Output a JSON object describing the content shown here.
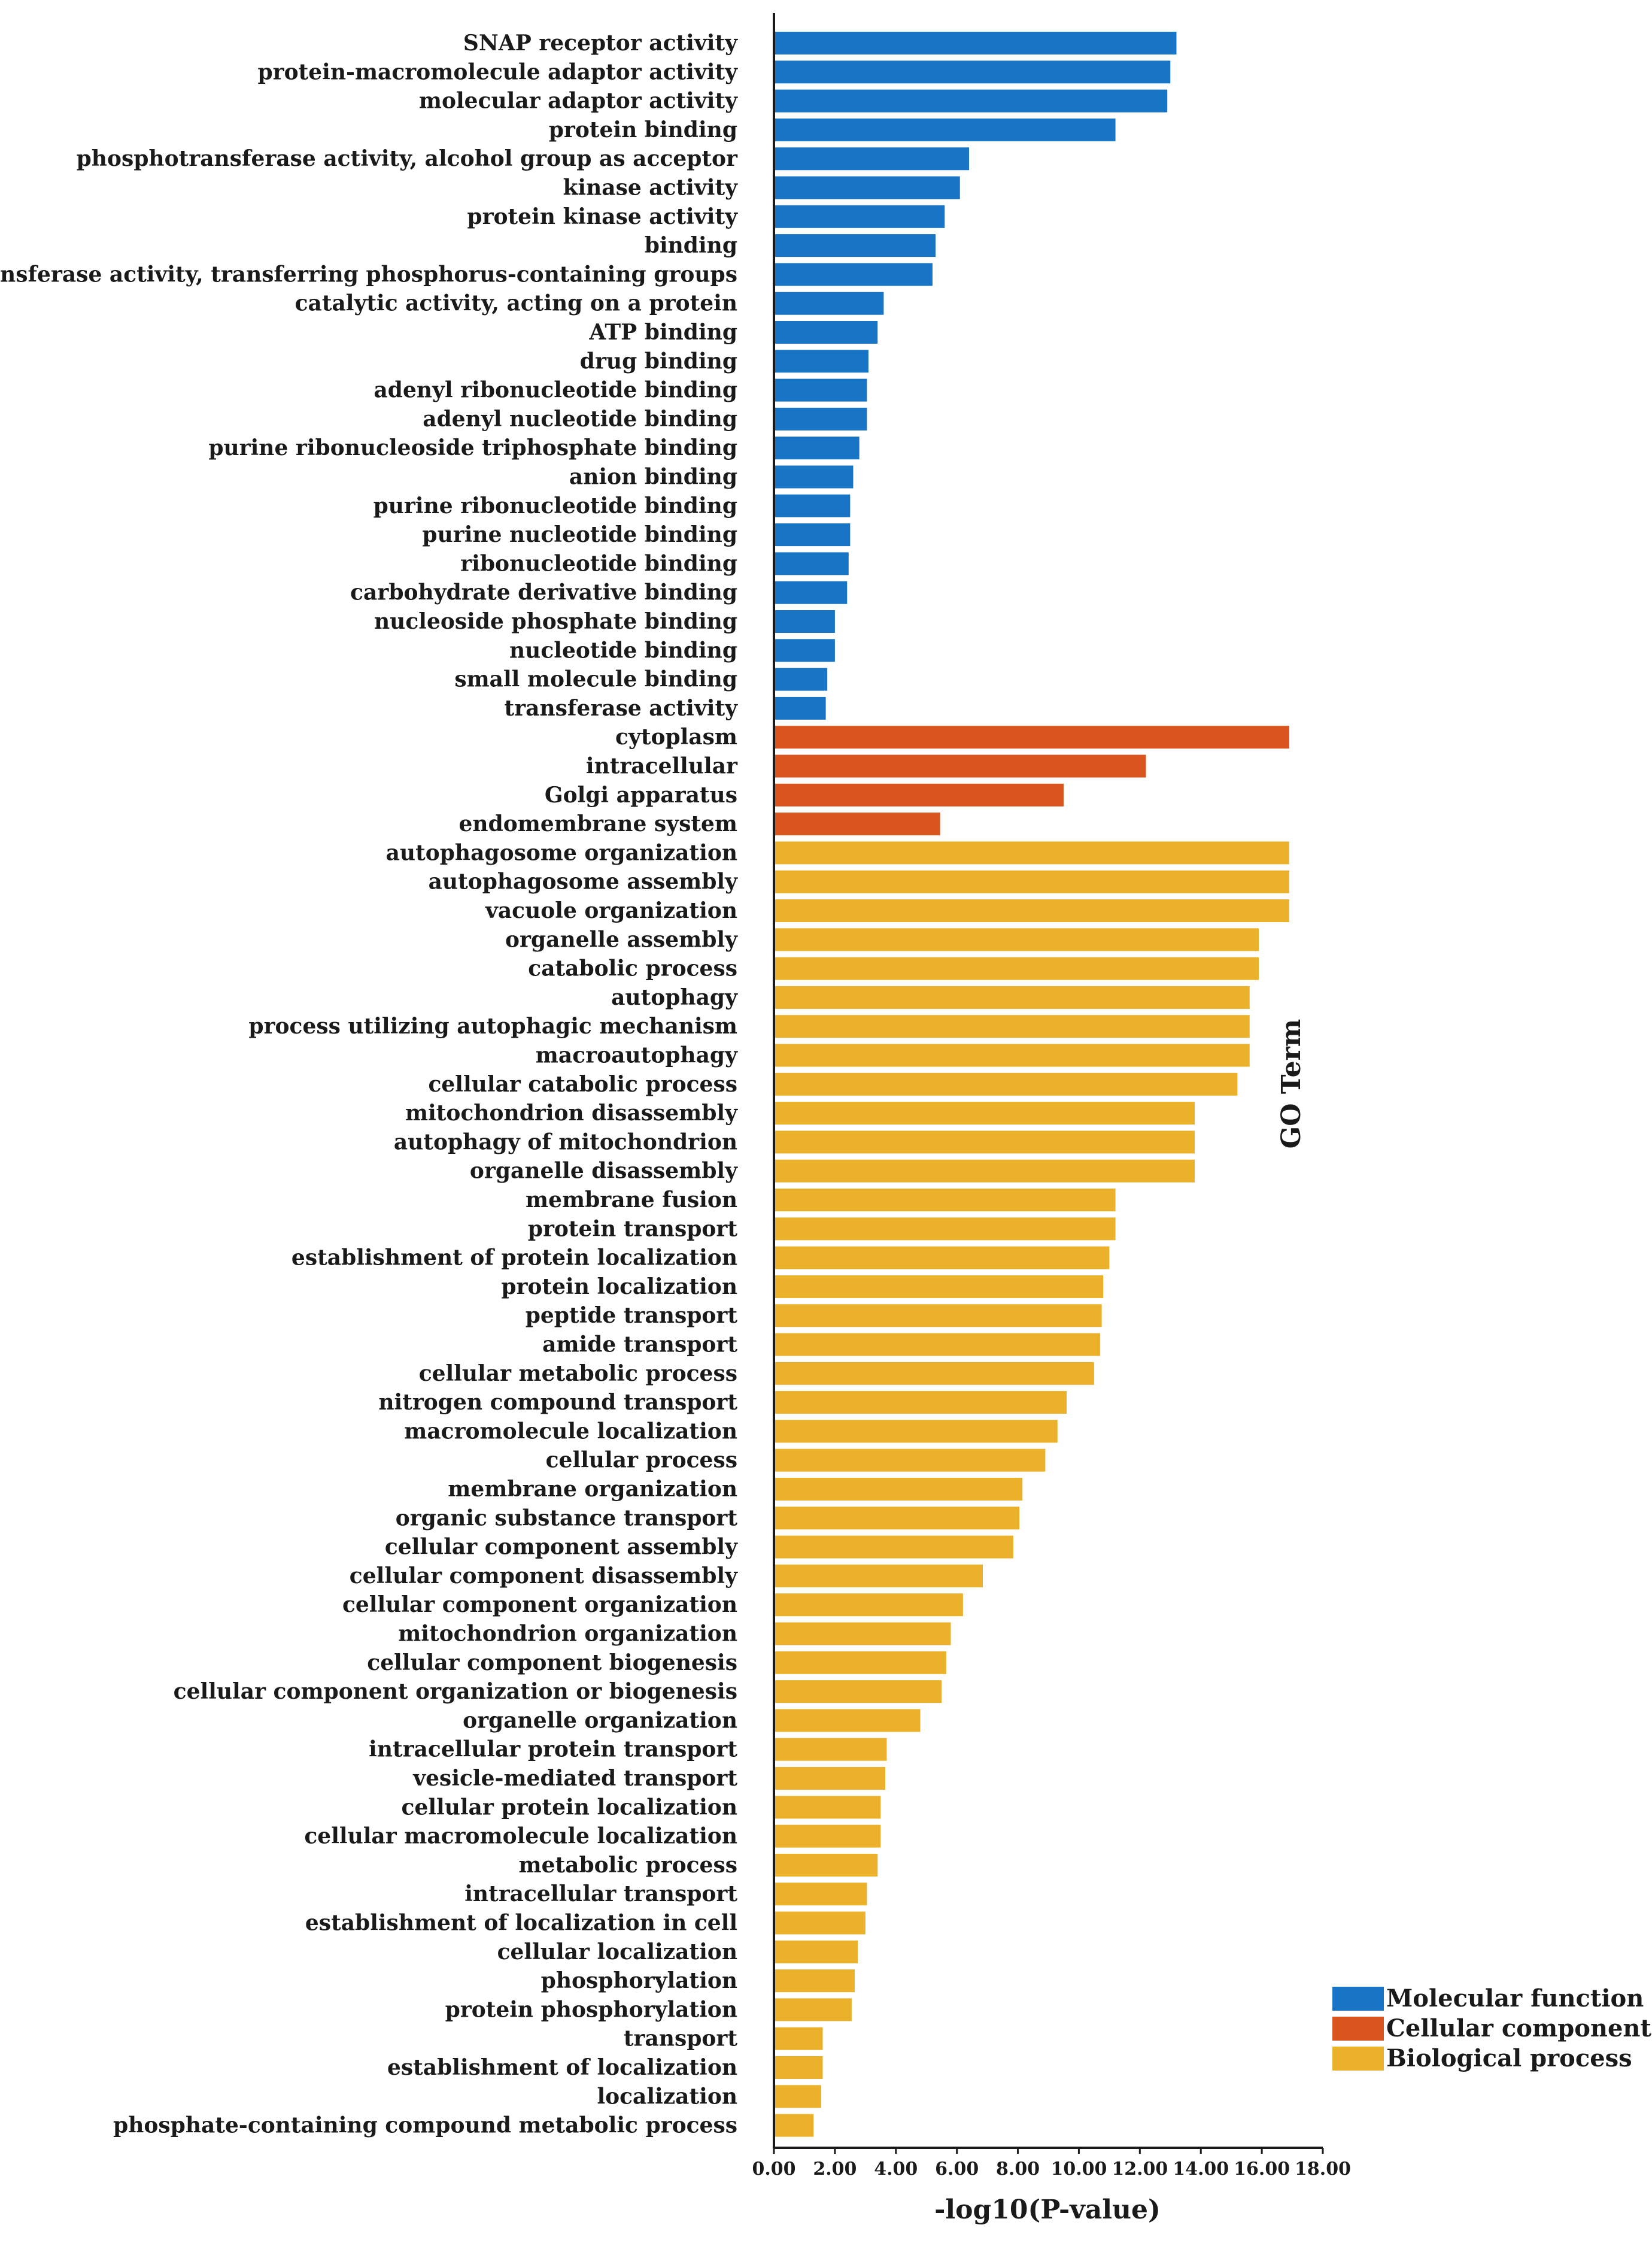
{
  "chart_data": {
    "type": "bar",
    "orientation": "horizontal",
    "xlabel": "-log10(P-value)",
    "ylabel": "GO Term",
    "xlim": [
      0,
      18
    ],
    "xticks": [
      "0.00",
      "2.00",
      "4.00",
      "6.00",
      "8.00",
      "10.00",
      "12.00",
      "14.00",
      "16.00",
      "18.00"
    ],
    "grid": false,
    "legend_position": "bottom-right",
    "series": [
      {
        "name": "Molecular function",
        "color": "#1874c4"
      },
      {
        "name": "Cellular component",
        "color": "#d9541e"
      },
      {
        "name": "Biological process",
        "color": "#ecb12a"
      }
    ],
    "bars": [
      {
        "term": "SNAP receptor activity",
        "value": 13.2,
        "category": "Molecular function"
      },
      {
        "term": "protein-macromolecule adaptor activity",
        "value": 13.0,
        "category": "Molecular function"
      },
      {
        "term": "molecular adaptor activity",
        "value": 12.9,
        "category": "Molecular function"
      },
      {
        "term": "protein binding",
        "value": 11.2,
        "category": "Molecular function"
      },
      {
        "term": "phosphotransferase activity, alcohol group as acceptor",
        "value": 6.4,
        "category": "Molecular function"
      },
      {
        "term": "kinase activity",
        "value": 6.1,
        "category": "Molecular function"
      },
      {
        "term": "protein kinase activity",
        "value": 5.6,
        "category": "Molecular function"
      },
      {
        "term": "binding",
        "value": 5.3,
        "category": "Molecular function"
      },
      {
        "term": "transferase activity, transferring phosphorus-containing groups",
        "value": 5.2,
        "category": "Molecular function"
      },
      {
        "term": "catalytic activity, acting on a protein",
        "value": 3.6,
        "category": "Molecular function"
      },
      {
        "term": "ATP binding",
        "value": 3.4,
        "category": "Molecular function"
      },
      {
        "term": "drug binding",
        "value": 3.1,
        "category": "Molecular function"
      },
      {
        "term": "adenyl ribonucleotide binding",
        "value": 3.05,
        "category": "Molecular function"
      },
      {
        "term": "adenyl nucleotide binding",
        "value": 3.05,
        "category": "Molecular function"
      },
      {
        "term": "purine ribonucleoside triphosphate binding",
        "value": 2.8,
        "category": "Molecular function"
      },
      {
        "term": "anion binding",
        "value": 2.6,
        "category": "Molecular function"
      },
      {
        "term": "purine ribonucleotide binding",
        "value": 2.5,
        "category": "Molecular function"
      },
      {
        "term": "purine nucleotide binding",
        "value": 2.5,
        "category": "Molecular function"
      },
      {
        "term": "ribonucleotide binding",
        "value": 2.45,
        "category": "Molecular function"
      },
      {
        "term": "carbohydrate derivative binding",
        "value": 2.4,
        "category": "Molecular function"
      },
      {
        "term": "nucleoside phosphate binding",
        "value": 2.0,
        "category": "Molecular function"
      },
      {
        "term": "nucleotide binding",
        "value": 2.0,
        "category": "Molecular function"
      },
      {
        "term": "small molecule binding",
        "value": 1.75,
        "category": "Molecular function"
      },
      {
        "term": "transferase activity",
        "value": 1.7,
        "category": "Molecular function"
      },
      {
        "term": "cytoplasm",
        "value": 16.9,
        "category": "Cellular component"
      },
      {
        "term": "intracellular",
        "value": 12.2,
        "category": "Cellular component"
      },
      {
        "term": "Golgi apparatus",
        "value": 9.5,
        "category": "Cellular component"
      },
      {
        "term": "endomembrane system",
        "value": 5.45,
        "category": "Cellular component"
      },
      {
        "term": "autophagosome organization",
        "value": 16.9,
        "category": "Biological process"
      },
      {
        "term": "autophagosome assembly",
        "value": 16.9,
        "category": "Biological process"
      },
      {
        "term": "vacuole organization",
        "value": 16.9,
        "category": "Biological process"
      },
      {
        "term": "organelle assembly",
        "value": 15.9,
        "category": "Biological process"
      },
      {
        "term": "catabolic process",
        "value": 15.9,
        "category": "Biological process"
      },
      {
        "term": "autophagy",
        "value": 15.6,
        "category": "Biological process"
      },
      {
        "term": "process utilizing autophagic mechanism",
        "value": 15.6,
        "category": "Biological process"
      },
      {
        "term": "macroautophagy",
        "value": 15.6,
        "category": "Biological process"
      },
      {
        "term": "cellular catabolic process",
        "value": 15.2,
        "category": "Biological process"
      },
      {
        "term": "mitochondrion disassembly",
        "value": 13.8,
        "category": "Biological process"
      },
      {
        "term": "autophagy of mitochondrion",
        "value": 13.8,
        "category": "Biological process"
      },
      {
        "term": "organelle disassembly",
        "value": 13.8,
        "category": "Biological process"
      },
      {
        "term": "membrane fusion",
        "value": 11.2,
        "category": "Biological process"
      },
      {
        "term": "protein transport",
        "value": 11.2,
        "category": "Biological process"
      },
      {
        "term": "establishment of protein localization",
        "value": 11.0,
        "category": "Biological process"
      },
      {
        "term": "protein localization",
        "value": 10.8,
        "category": "Biological process"
      },
      {
        "term": "peptide transport",
        "value": 10.75,
        "category": "Biological process"
      },
      {
        "term": "amide transport",
        "value": 10.7,
        "category": "Biological process"
      },
      {
        "term": "cellular metabolic process",
        "value": 10.5,
        "category": "Biological process"
      },
      {
        "term": "nitrogen compound transport",
        "value": 9.6,
        "category": "Biological process"
      },
      {
        "term": "macromolecule localization",
        "value": 9.3,
        "category": "Biological process"
      },
      {
        "term": "cellular process",
        "value": 8.9,
        "category": "Biological process"
      },
      {
        "term": "membrane organization",
        "value": 8.15,
        "category": "Biological process"
      },
      {
        "term": "organic substance transport",
        "value": 8.05,
        "category": "Biological process"
      },
      {
        "term": "cellular component assembly",
        "value": 7.85,
        "category": "Biological process"
      },
      {
        "term": "cellular component disassembly",
        "value": 6.85,
        "category": "Biological process"
      },
      {
        "term": "cellular component organization",
        "value": 6.2,
        "category": "Biological process"
      },
      {
        "term": "mitochondrion organization",
        "value": 5.8,
        "category": "Biological process"
      },
      {
        "term": "cellular component biogenesis",
        "value": 5.65,
        "category": "Biological process"
      },
      {
        "term": "cellular component organization or biogenesis",
        "value": 5.5,
        "category": "Biological process"
      },
      {
        "term": "organelle organization",
        "value": 4.8,
        "category": "Biological process"
      },
      {
        "term": "intracellular protein transport",
        "value": 3.7,
        "category": "Biological process"
      },
      {
        "term": "vesicle-mediated transport",
        "value": 3.65,
        "category": "Biological process"
      },
      {
        "term": "cellular protein localization",
        "value": 3.5,
        "category": "Biological process"
      },
      {
        "term": "cellular macromolecule localization",
        "value": 3.5,
        "category": "Biological process"
      },
      {
        "term": "metabolic process",
        "value": 3.4,
        "category": "Biological process"
      },
      {
        "term": "intracellular transport",
        "value": 3.05,
        "category": "Biological process"
      },
      {
        "term": "establishment of localization in cell",
        "value": 3.0,
        "category": "Biological process"
      },
      {
        "term": "cellular localization",
        "value": 2.75,
        "category": "Biological process"
      },
      {
        "term": "phosphorylation",
        "value": 2.65,
        "category": "Biological process"
      },
      {
        "term": "protein phosphorylation",
        "value": 2.55,
        "category": "Biological process"
      },
      {
        "term": "transport",
        "value": 1.6,
        "category": "Biological process"
      },
      {
        "term": "establishment of localization",
        "value": 1.6,
        "category": "Biological process"
      },
      {
        "term": "localization",
        "value": 1.55,
        "category": "Biological process"
      },
      {
        "term": "phosphate-containing compound metabolic process",
        "value": 1.3,
        "category": "Biological process"
      }
    ]
  }
}
